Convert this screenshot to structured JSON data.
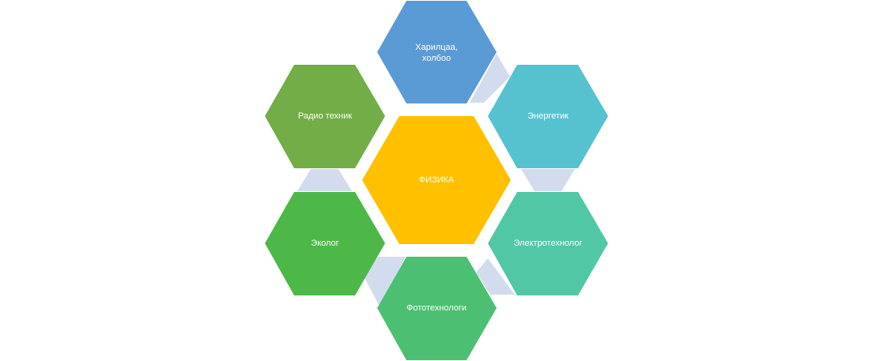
{
  "diagram": {
    "center": {
      "label": "ФИЗИКА",
      "color": "#FFC000"
    },
    "nodes": [
      {
        "label": "Харилцаа,\nхолбоо",
        "color": "#5B9BD5"
      },
      {
        "label": "Энергетик",
        "color": "#56C2D0"
      },
      {
        "label": "Электротехнолог",
        "color": "#52C7A6"
      },
      {
        "label": "Фототехнологи",
        "color": "#4CBF72"
      },
      {
        "label": "Эколог",
        "color": "#4DB848"
      },
      {
        "label": "Радио техник",
        "color": "#72AD47"
      }
    ],
    "connector_color": "#D3DCEE"
  }
}
